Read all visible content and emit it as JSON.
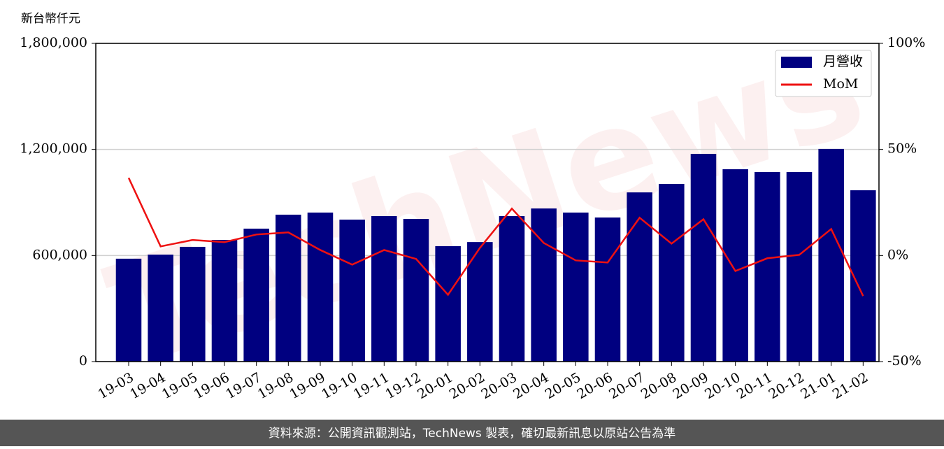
{
  "chart_data": {
    "type": "bar-line",
    "y_label": "新台幣仟元",
    "watermark": "TechNews",
    "categories": [
      "19-03",
      "19-04",
      "19-05",
      "19-06",
      "19-07",
      "19-08",
      "19-09",
      "19-10",
      "19-11",
      "19-12",
      "20-01",
      "20-02",
      "20-03",
      "20-04",
      "20-05",
      "20-06",
      "20-07",
      "20-08",
      "20-09",
      "20-10",
      "20-11",
      "20-12",
      "21-01",
      "21-02"
    ],
    "series": [
      {
        "name": "月營收",
        "type": "bar",
        "color": "#000080",
        "values": [
          582000,
          605000,
          649000,
          688000,
          752000,
          831000,
          843000,
          803000,
          823000,
          807000,
          653000,
          676000,
          823000,
          866000,
          843000,
          815000,
          957000,
          1005000,
          1175000,
          1088000,
          1072000,
          1072000,
          1203000,
          969000
        ]
      },
      {
        "name": "MoM",
        "type": "line",
        "axis": "y2",
        "color": "#ee1111",
        "values": [
          36.6,
          4.3,
          7.3,
          6.3,
          9.9,
          10.9,
          2.6,
          -4.3,
          2.6,
          -1.6,
          -18.5,
          3.6,
          22.1,
          5.9,
          -2.3,
          -3.3,
          17.8,
          5.6,
          17.1,
          -7.3,
          -1.3,
          0.3,
          12.5,
          -19.1
        ]
      }
    ],
    "ylim": [
      0,
      1800000
    ],
    "yticks": [
      {
        "value": 0,
        "label": "0"
      },
      {
        "value": 600000,
        "label": "600,000"
      },
      {
        "value": 1200000,
        "label": "1,200,000"
      },
      {
        "value": 1800000,
        "label": "1,800,000"
      }
    ],
    "y2lim": [
      -50,
      100
    ],
    "y2ticks": [
      {
        "value": -50,
        "label": "-50%"
      },
      {
        "value": 0,
        "label": "0%"
      },
      {
        "value": 50,
        "label": "50%"
      },
      {
        "value": 100,
        "label": "100%"
      }
    ],
    "grid": true,
    "legend": "upper right"
  },
  "footer": "資料來源：公開資訊觀測站，TechNews 製表，確切最新訊息以原站公告為準"
}
